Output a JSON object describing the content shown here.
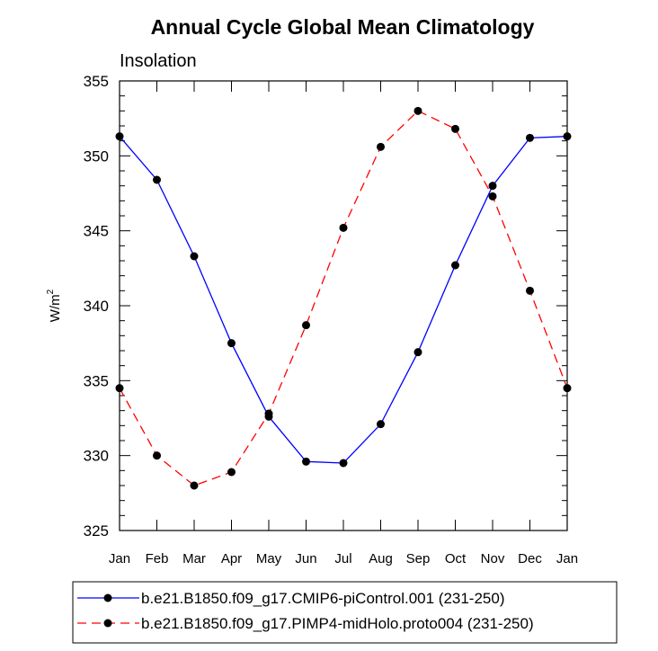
{
  "chart_data": {
    "type": "line",
    "title": "Annual Cycle Global Mean Climatology",
    "subtitle": "Insolation",
    "ylabel": "W/m",
    "ylabel_superscript": "2",
    "xlabel": "",
    "ylim": [
      325,
      355
    ],
    "yticks": [
      325,
      330,
      335,
      340,
      345,
      350,
      355
    ],
    "categories": [
      "Jan",
      "Feb",
      "Mar",
      "Apr",
      "May",
      "Jun",
      "Jul",
      "Aug",
      "Sep",
      "Oct",
      "Nov",
      "Dec",
      "Jan"
    ],
    "grid": false,
    "legend_position": "bottom",
    "series": [
      {
        "name": "b.e21.B1850.f09_g17.CMIP6-piControl.001 (231-250)",
        "color": "#0000ff",
        "line_style": "solid",
        "marker": "filled-circle",
        "values": [
          351.3,
          348.4,
          343.3,
          337.5,
          332.6,
          329.6,
          329.5,
          332.1,
          336.9,
          342.7,
          348.0,
          351.2,
          351.3
        ]
      },
      {
        "name": "b.e21.B1850.f09_g17.PIMP4-midHolo.proto004 (231-250)",
        "color": "#ff0000",
        "line_style": "dashed",
        "marker": "filled-circle",
        "values": [
          334.5,
          330.0,
          328.0,
          328.9,
          332.8,
          338.7,
          345.2,
          350.6,
          353.0,
          351.8,
          347.3,
          341.0,
          334.5
        ]
      }
    ]
  }
}
